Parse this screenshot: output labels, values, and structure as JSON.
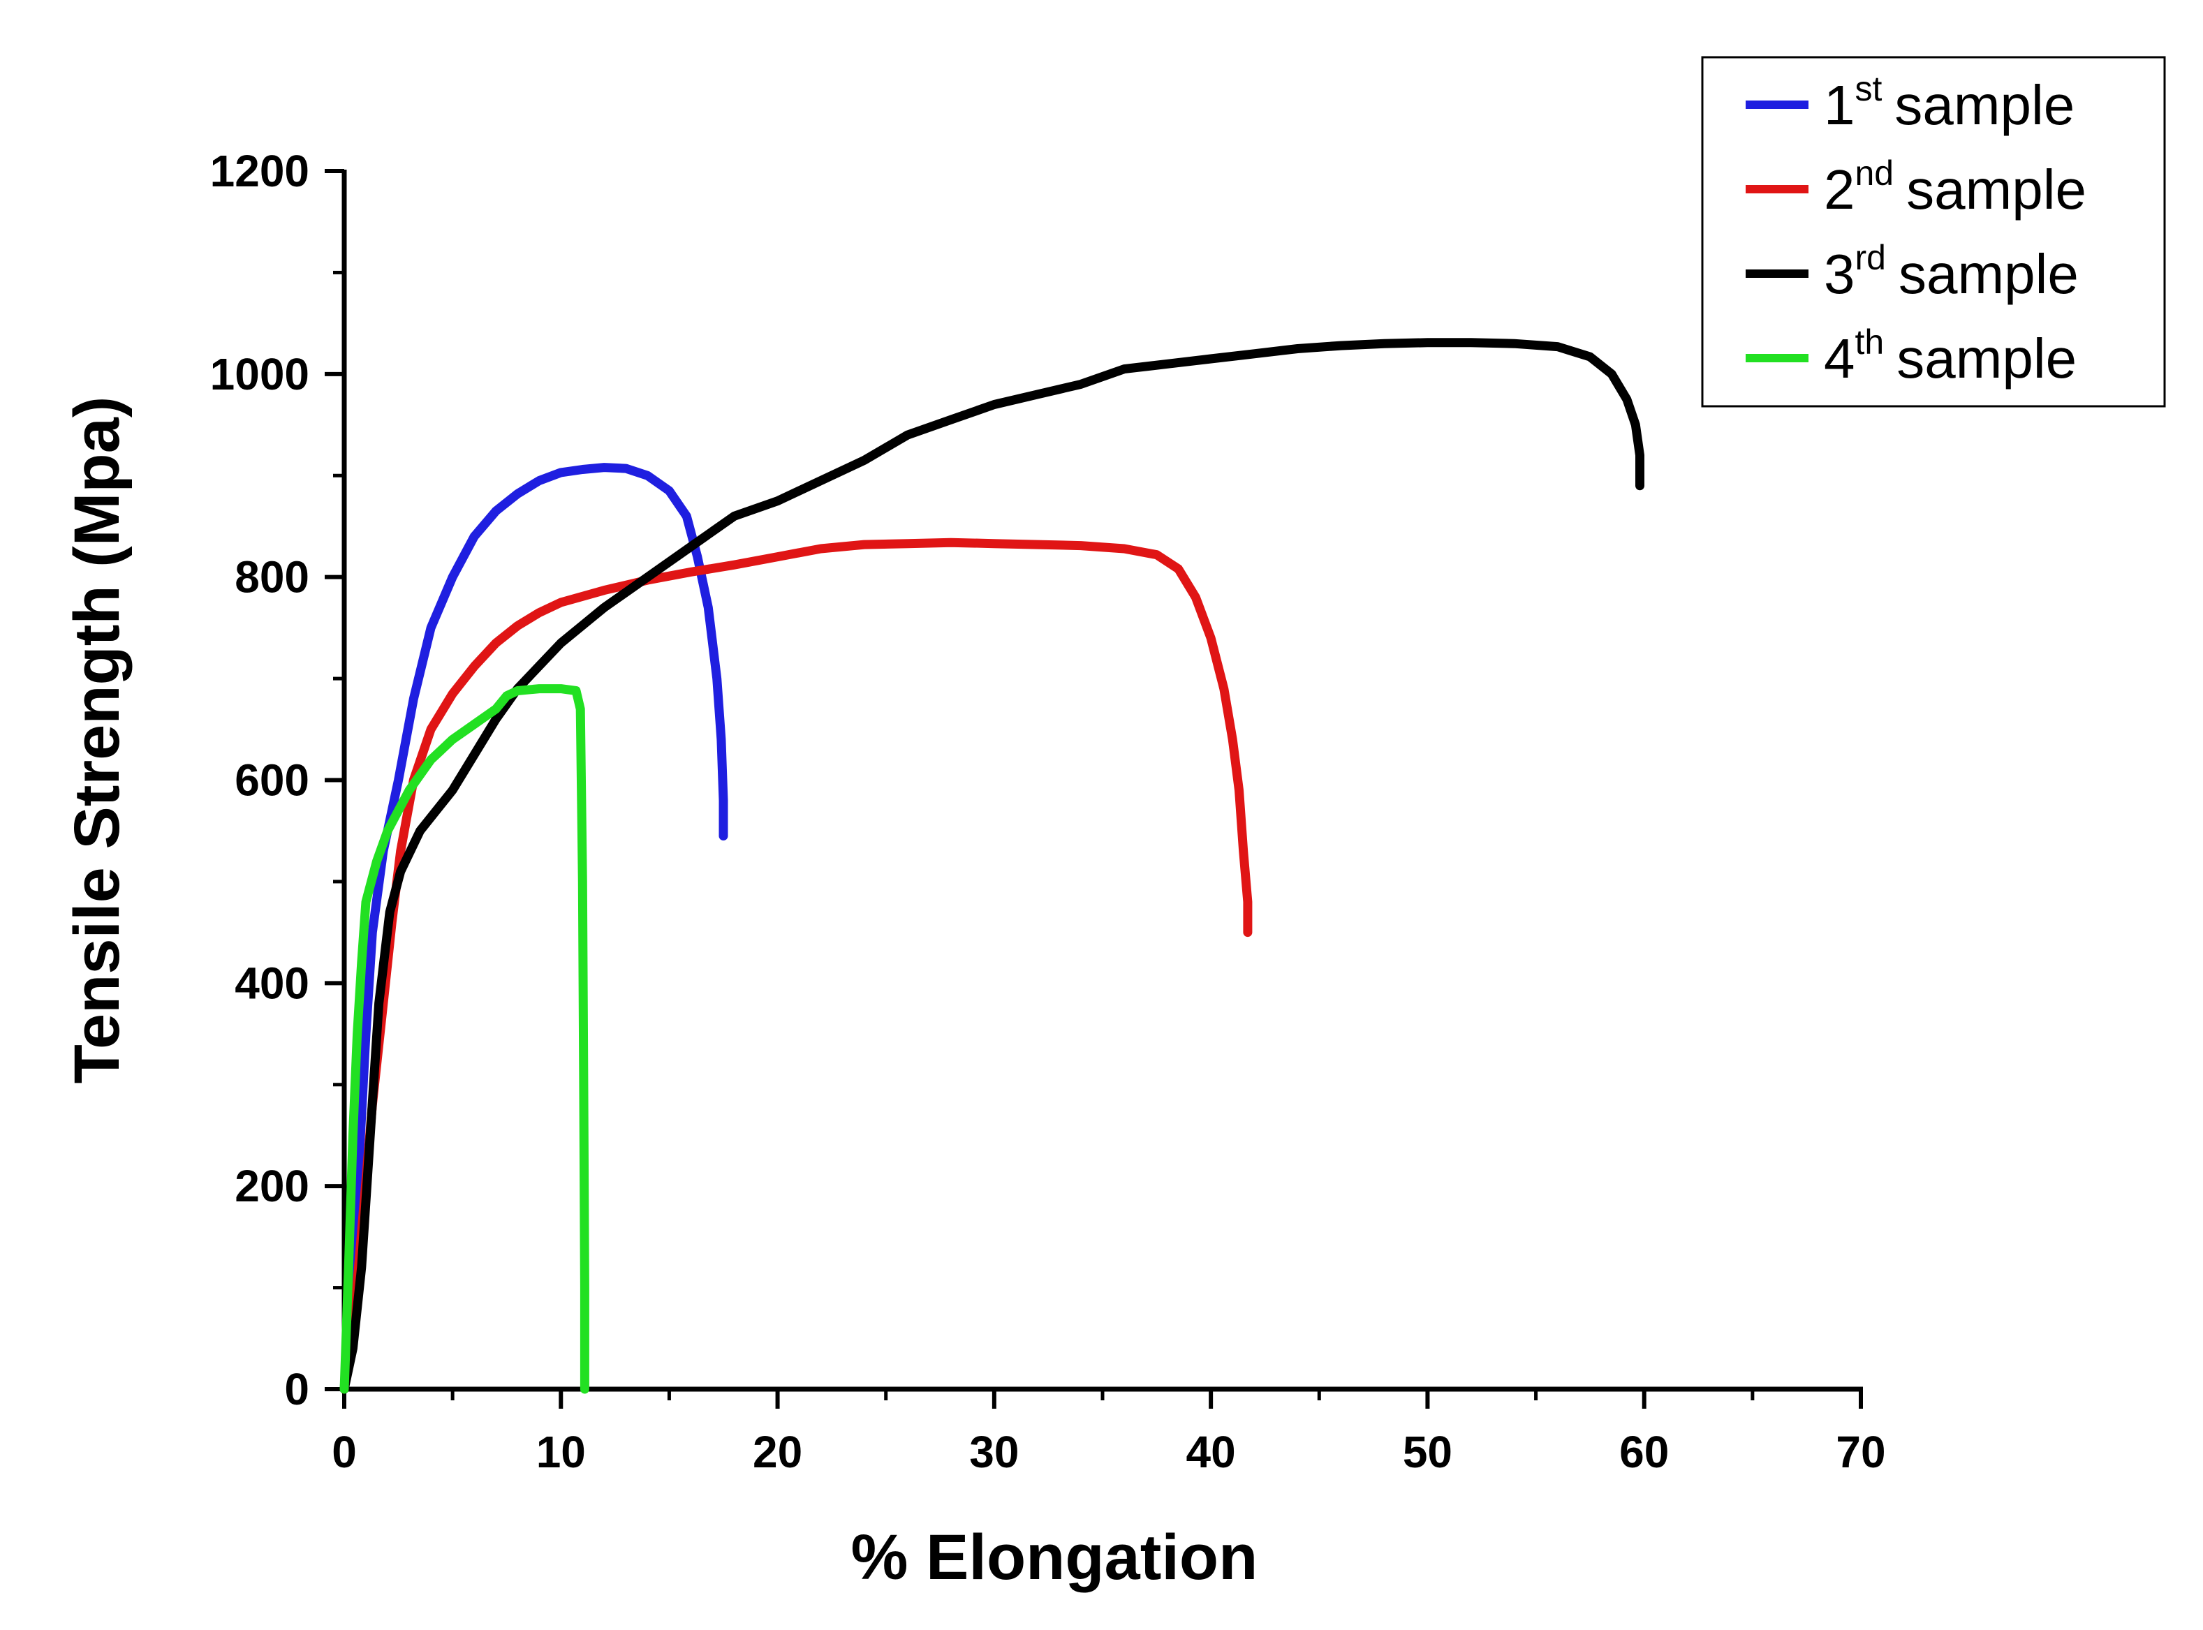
{
  "chart_data": {
    "type": "line",
    "title": "",
    "xlabel": "% Elongation",
    "ylabel": "Tensile Strength (Mpa)",
    "xlim": [
      0,
      70
    ],
    "ylim": [
      0,
      1200
    ],
    "xticks": [
      0,
      10,
      20,
      30,
      40,
      50,
      60,
      70
    ],
    "yticks": [
      0,
      200,
      400,
      600,
      800,
      1000,
      1200
    ],
    "grid": false,
    "legend_position": "top-right",
    "series": [
      {
        "name": "1st sample",
        "label_num": "1",
        "label_sup": "st",
        "label_text": "sample",
        "color": "#1f1fe0",
        "points": [
          [
            0,
            0
          ],
          [
            0.3,
            100
          ],
          [
            0.7,
            230
          ],
          [
            1,
            350
          ],
          [
            1.3,
            450
          ],
          [
            1.8,
            530
          ],
          [
            2.5,
            600
          ],
          [
            3.2,
            680
          ],
          [
            4,
            750
          ],
          [
            5,
            800
          ],
          [
            6,
            840
          ],
          [
            7,
            865
          ],
          [
            8,
            882
          ],
          [
            9,
            895
          ],
          [
            10,
            903
          ],
          [
            11,
            906
          ],
          [
            12,
            908
          ],
          [
            13,
            907
          ],
          [
            14,
            900
          ],
          [
            15,
            885
          ],
          [
            15.8,
            860
          ],
          [
            16.3,
            820
          ],
          [
            16.8,
            770
          ],
          [
            17.2,
            700
          ],
          [
            17.4,
            640
          ],
          [
            17.5,
            580
          ],
          [
            17.5,
            545
          ]
        ]
      },
      {
        "name": "2nd sample",
        "label_num": "2",
        "label_sup": "nd",
        "label_text": "sample",
        "color": "#e01515",
        "points": [
          [
            0,
            0
          ],
          [
            0.5,
            80
          ],
          [
            0.9,
            180
          ],
          [
            1.3,
            280
          ],
          [
            1.8,
            380
          ],
          [
            2.2,
            460
          ],
          [
            2.6,
            530
          ],
          [
            3.2,
            600
          ],
          [
            4,
            650
          ],
          [
            5,
            685
          ],
          [
            6,
            712
          ],
          [
            7,
            735
          ],
          [
            8,
            752
          ],
          [
            9,
            765
          ],
          [
            10,
            775
          ],
          [
            12,
            787
          ],
          [
            14,
            797
          ],
          [
            16,
            805
          ],
          [
            18,
            812
          ],
          [
            20,
            820
          ],
          [
            22,
            828
          ],
          [
            24,
            832
          ],
          [
            26,
            833
          ],
          [
            28,
            834
          ],
          [
            30,
            833
          ],
          [
            32,
            832
          ],
          [
            34,
            831
          ],
          [
            36,
            828
          ],
          [
            37.5,
            822
          ],
          [
            38.5,
            808
          ],
          [
            39.3,
            780
          ],
          [
            40,
            740
          ],
          [
            40.6,
            690
          ],
          [
            41,
            640
          ],
          [
            41.3,
            590
          ],
          [
            41.5,
            530
          ],
          [
            41.7,
            480
          ],
          [
            41.7,
            450
          ]
        ]
      },
      {
        "name": "3rd sample",
        "label_num": "3",
        "label_sup": "rd",
        "label_text": "sample",
        "color": "#000000",
        "points": [
          [
            0,
            0
          ],
          [
            0.4,
            40
          ],
          [
            0.8,
            120
          ],
          [
            1.2,
            250
          ],
          [
            1.6,
            380
          ],
          [
            2.1,
            470
          ],
          [
            2.6,
            510
          ],
          [
            3.5,
            550
          ],
          [
            5,
            590
          ],
          [
            6,
            625
          ],
          [
            7,
            660
          ],
          [
            8,
            690
          ],
          [
            10,
            735
          ],
          [
            12,
            770
          ],
          [
            14,
            800
          ],
          [
            16,
            830
          ],
          [
            18,
            860
          ],
          [
            20,
            875
          ],
          [
            22,
            895
          ],
          [
            24,
            915
          ],
          [
            26,
            940
          ],
          [
            28,
            955
          ],
          [
            30,
            970
          ],
          [
            32,
            980
          ],
          [
            34,
            990
          ],
          [
            36,
            1005
          ],
          [
            38,
            1010
          ],
          [
            40,
            1015
          ],
          [
            42,
            1020
          ],
          [
            44,
            1025
          ],
          [
            46,
            1028
          ],
          [
            48,
            1030
          ],
          [
            50,
            1031
          ],
          [
            52,
            1031
          ],
          [
            54,
            1030
          ],
          [
            56,
            1027
          ],
          [
            57.5,
            1017
          ],
          [
            58.5,
            1000
          ],
          [
            59.2,
            975
          ],
          [
            59.6,
            950
          ],
          [
            59.8,
            920
          ],
          [
            59.8,
            890
          ]
        ]
      },
      {
        "name": "4th sample",
        "label_num": "4",
        "label_sup": "th",
        "label_text": "sample",
        "color": "#22e022",
        "points": [
          [
            0,
            0
          ],
          [
            0.2,
            120
          ],
          [
            0.4,
            250
          ],
          [
            0.6,
            350
          ],
          [
            0.8,
            420
          ],
          [
            1,
            480
          ],
          [
            1.5,
            520
          ],
          [
            2,
            550
          ],
          [
            3,
            590
          ],
          [
            4,
            620
          ],
          [
            5,
            640
          ],
          [
            6,
            655
          ],
          [
            7,
            670
          ],
          [
            7.5,
            683
          ],
          [
            8,
            688
          ],
          [
            9,
            690
          ],
          [
            10,
            690
          ],
          [
            10.7,
            688
          ],
          [
            10.9,
            670
          ],
          [
            11,
            500
          ],
          [
            11.05,
            300
          ],
          [
            11.1,
            100
          ],
          [
            11.1,
            0
          ]
        ]
      }
    ]
  }
}
